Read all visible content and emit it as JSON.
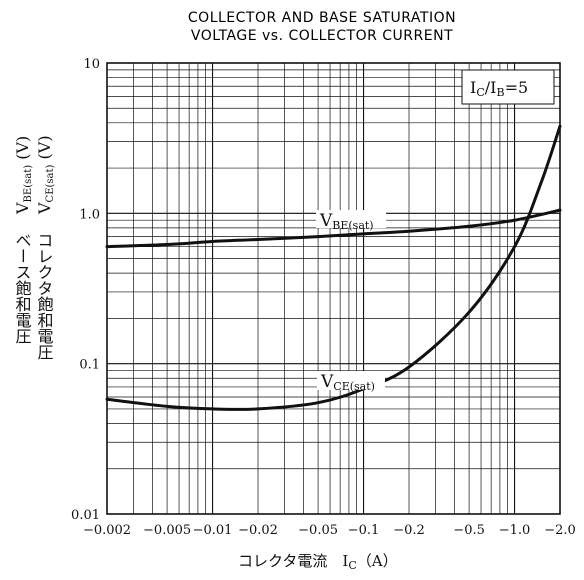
{
  "chart_data": {
    "type": "line",
    "title": [
      "COLLECTOR AND BASE SATURATION",
      "VOLTAGE vs. COLLECTOR CURRENT"
    ],
    "xlabel": "コレクタ電流　I_C（A）",
    "ylabel_lines": [
      "ベース飽和電圧　V_BE(sat)（V）",
      "コレクタ飽和電圧　V_CE(sat)（V）"
    ],
    "x_scale": "log",
    "y_scale": "log",
    "xlim": [
      -0.002,
      -2.0
    ],
    "ylim": [
      0.01,
      10
    ],
    "x_ticks": [
      "-0.002",
      "-0.005",
      "-0.01",
      "-0.02",
      "-0.05",
      "-0.1",
      "-0.2",
      "-0.5",
      "-1.0",
      "-2.0"
    ],
    "y_ticks": [
      "0.01",
      "0.1",
      "1.0",
      "10"
    ],
    "annotation": "I_C/I_B = 5",
    "grid": true,
    "series": [
      {
        "name": "V_BE(sat)",
        "x": [
          -0.002,
          -0.005,
          -0.01,
          -0.02,
          -0.05,
          -0.1,
          -0.2,
          -0.5,
          -1.0,
          -2.0
        ],
        "y": [
          0.6,
          0.62,
          0.65,
          0.67,
          0.7,
          0.73,
          0.76,
          0.82,
          0.9,
          1.05
        ]
      },
      {
        "name": "V_CE(sat)",
        "x": [
          -0.002,
          -0.005,
          -0.01,
          -0.02,
          -0.05,
          -0.1,
          -0.2,
          -0.5,
          -1.0,
          -1.5,
          -2.0
        ],
        "y": [
          0.058,
          0.052,
          0.05,
          0.05,
          0.055,
          0.068,
          0.095,
          0.22,
          0.6,
          1.6,
          3.8
        ]
      }
    ]
  }
}
